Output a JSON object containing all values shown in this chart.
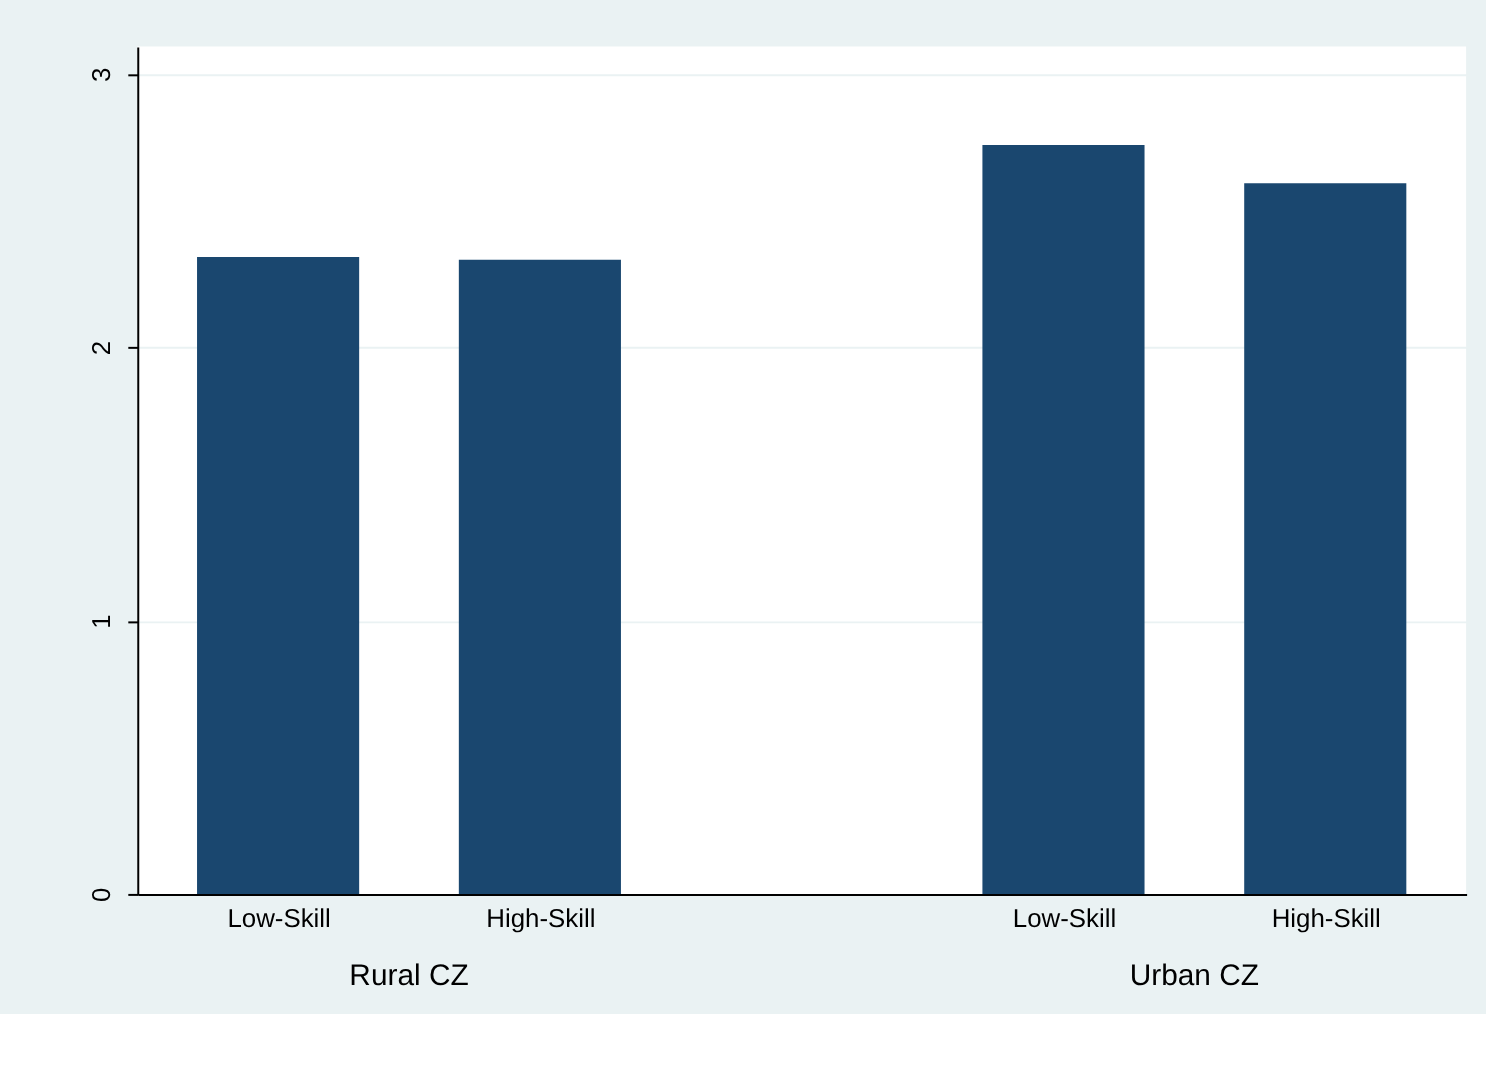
{
  "chart_data": {
    "type": "bar",
    "categories": [
      "Low-Skill",
      "High-Skill",
      null,
      "Low-Skill",
      "High-Skill"
    ],
    "values": [
      2.33,
      2.32,
      null,
      2.74,
      2.6
    ],
    "color": "#1a476f",
    "ylim": [
      0,
      3.1
    ],
    "yticks": [
      0,
      1,
      2,
      3
    ],
    "grid": "y",
    "annotations": [
      "Rural CZ",
      "Urban CZ"
    ]
  }
}
